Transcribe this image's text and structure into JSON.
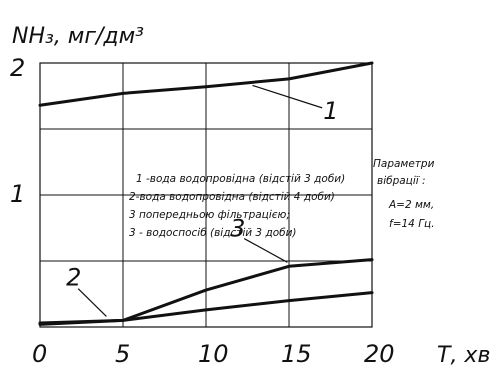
{
  "chart_data": {
    "type": "line",
    "ylabel": "NH₃, мг/дм³",
    "xlabel": "Т, хв",
    "x_ticks": [
      "0",
      "5",
      "10",
      "15",
      "20"
    ],
    "y_ticks": [
      "1",
      "2"
    ],
    "xlim": [
      0,
      20
    ],
    "ylim": [
      0,
      2
    ],
    "grid": true,
    "series": [
      {
        "name": "1",
        "x": [
          0,
          5,
          10,
          15,
          20
        ],
        "values": [
          1.68,
          1.77,
          1.82,
          1.88,
          2.0
        ],
        "label_line_from": [
          17.0,
          1.66
        ],
        "label_line_to": [
          12.8,
          1.83
        ]
      },
      {
        "name": "2",
        "x": [
          0,
          5,
          10,
          15,
          20
        ],
        "values": [
          0.03,
          0.05,
          0.13,
          0.2,
          0.26
        ],
        "label_line_from": [
          2.3,
          0.29
        ],
        "label_line_to": [
          4.0,
          0.08
        ]
      },
      {
        "name": "3",
        "x": [
          0,
          5,
          10,
          15,
          20
        ],
        "values": [
          0.02,
          0.05,
          0.28,
          0.46,
          0.51
        ],
        "label_line_from": [
          12.3,
          0.67
        ],
        "label_line_to": [
          14.9,
          0.49
        ]
      }
    ],
    "legend": [
      "1 -вода водопровідна (відстій 3 доби)",
      "2-вода водопровідна (відстій 4 доби)",
      "3 попередньою фільтрацією;",
      "3 - водоспосіб (відстій 3 доби)"
    ],
    "parameters": [
      "Параметри",
      "вібрації :",
      "А=2 мм,",
      "f=14 Гц."
    ]
  },
  "colors": {
    "line": "#111111",
    "grid": "#111111",
    "background": "#ffffff"
  }
}
